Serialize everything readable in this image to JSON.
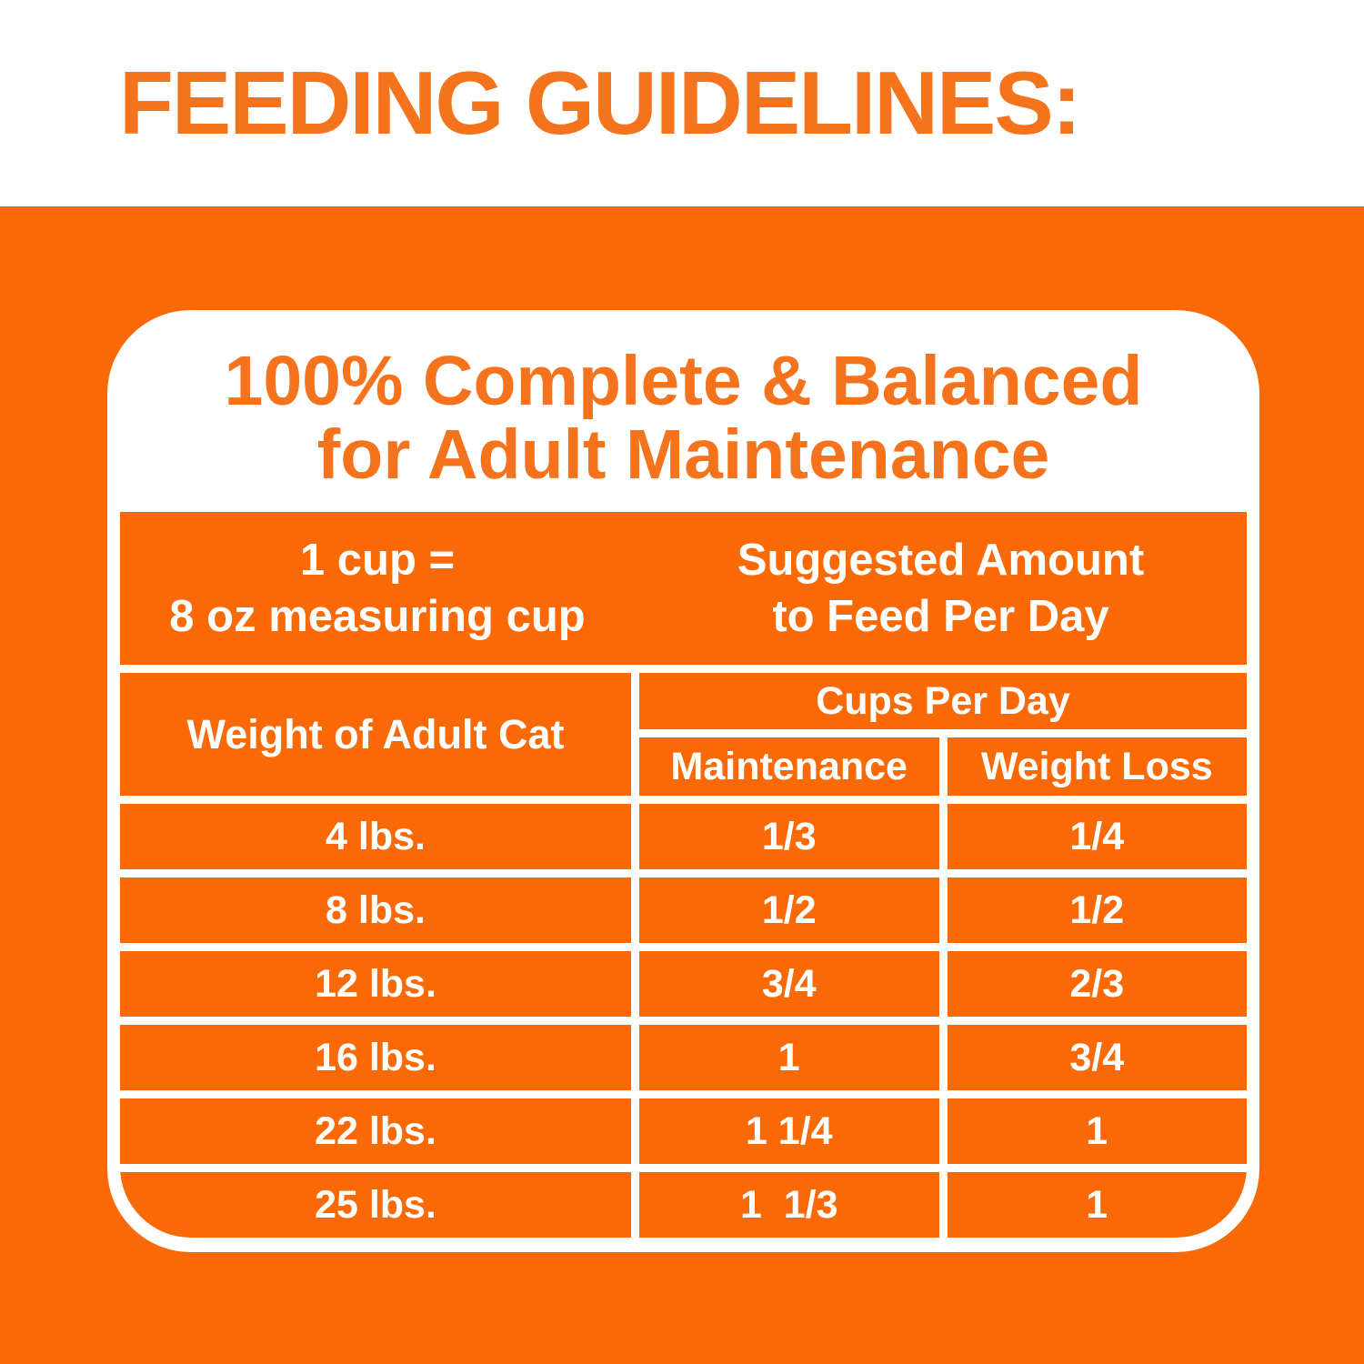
{
  "page": {
    "heading": "FEEDING GUIDELINES:"
  },
  "card": {
    "title_line1": "100% Complete & Balanced",
    "title_line2": "for Adult Maintenance"
  },
  "table": {
    "header_left_line1": "1 cup =",
    "header_left_line2": "8 oz measuring cup",
    "header_right_line1": "Suggested Amount",
    "header_right_line2": "to Feed Per Day",
    "weight_col_label": "Weight of Adult Cat",
    "cups_per_day_label": "Cups Per Day",
    "maintenance_label": "Maintenance",
    "weight_loss_label": "Weight Loss",
    "rows": [
      {
        "weight": "4 lbs.",
        "maintenance": "1/3",
        "weight_loss": "1/4"
      },
      {
        "weight": "8 lbs.",
        "maintenance": "1/2",
        "weight_loss": "1/2"
      },
      {
        "weight": "12 lbs.",
        "maintenance": "3/4",
        "weight_loss": "2/3"
      },
      {
        "weight": "16 lbs.",
        "maintenance": "1",
        "weight_loss": "3/4"
      },
      {
        "weight": "22 lbs.",
        "maintenance": "1 1/4",
        "weight_loss": "1"
      },
      {
        "weight": "25 lbs.",
        "maintenance": "1  1/3",
        "weight_loss": "1"
      }
    ]
  },
  "colors": {
    "orange_background": "#F96A06",
    "orange_text": "#F4731C",
    "white": "#FFFFFF"
  }
}
